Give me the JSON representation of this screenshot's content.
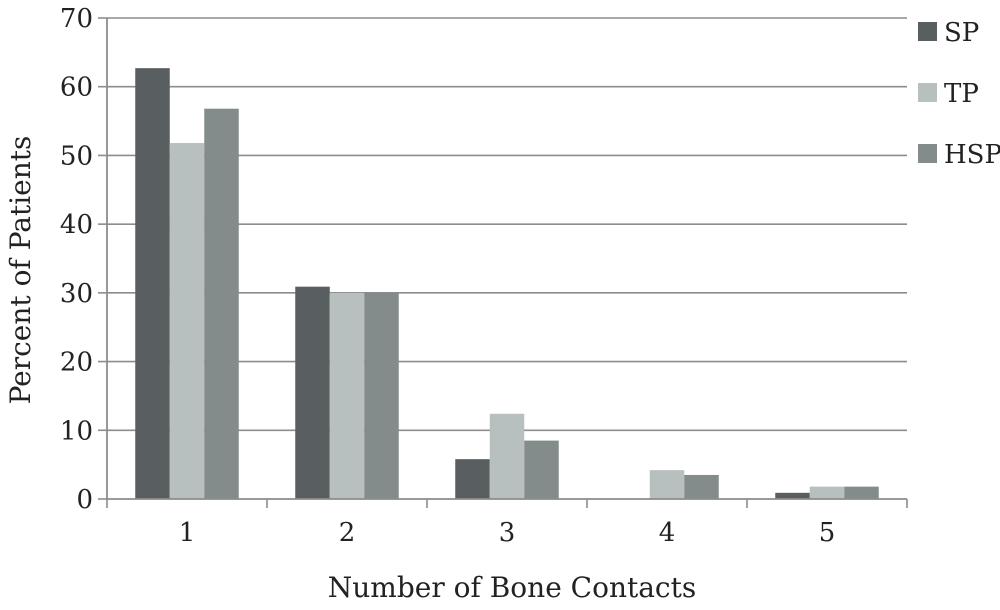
{
  "chart_data": {
    "type": "bar",
    "categories": [
      "1",
      "2",
      "3",
      "4",
      "5"
    ],
    "series": [
      {
        "name": "SP",
        "values": [
          62.7,
          30.9,
          5.8,
          0,
          0.9
        ],
        "color": "#595f61"
      },
      {
        "name": "TP",
        "values": [
          51.8,
          30.0,
          12.4,
          4.2,
          1.8
        ],
        "color": "#b8bfbf"
      },
      {
        "name": "HSP",
        "values": [
          56.8,
          30.0,
          8.5,
          3.5,
          1.8
        ],
        "color": "#848b8b"
      }
    ],
    "xlabel": "Number of Bone Contacts",
    "ylabel": "Percent of Patients",
    "ylim": [
      0,
      70
    ],
    "yticks": [
      0,
      10,
      20,
      30,
      40,
      50,
      60,
      70
    ],
    "grid": true,
    "legend": "right",
    "colors": {
      "grid": "#8c8c8c",
      "axis": "#8c8c8c",
      "text": "#222222"
    }
  }
}
